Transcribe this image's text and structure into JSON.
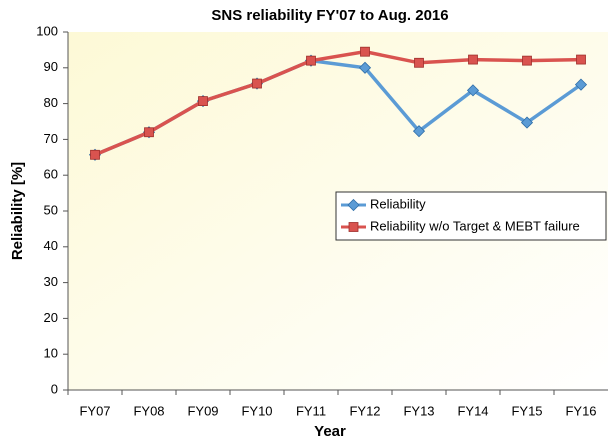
{
  "chart_data": {
    "type": "line",
    "title": "SNS reliability FY'07 to Aug. 2016",
    "xlabel": "Year",
    "ylabel": "Reliability [%]",
    "categories": [
      "FY07",
      "FY08",
      "FY09",
      "FY10",
      "FY11",
      "FY12",
      "FY13",
      "FY14",
      "FY15",
      "FY16"
    ],
    "series": [
      {
        "name": "Reliability",
        "color": "#5b9bd5",
        "marker": "diamond",
        "values": [
          65.7,
          72,
          80.7,
          85.6,
          92,
          90,
          72.3,
          83.7,
          74.7,
          85.3
        ]
      },
      {
        "name": "Reliability w/o Target & MEBT failure",
        "color": "#d9534f",
        "marker": "square",
        "values": [
          65.7,
          72,
          80.7,
          85.6,
          92,
          94.5,
          91.4,
          92.3,
          92,
          92.3
        ]
      }
    ],
    "ylim": [
      0,
      100
    ],
    "yticks": [
      0,
      10,
      20,
      30,
      40,
      50,
      60,
      70,
      80,
      90,
      100
    ],
    "grid": false,
    "legend": "center-right"
  }
}
